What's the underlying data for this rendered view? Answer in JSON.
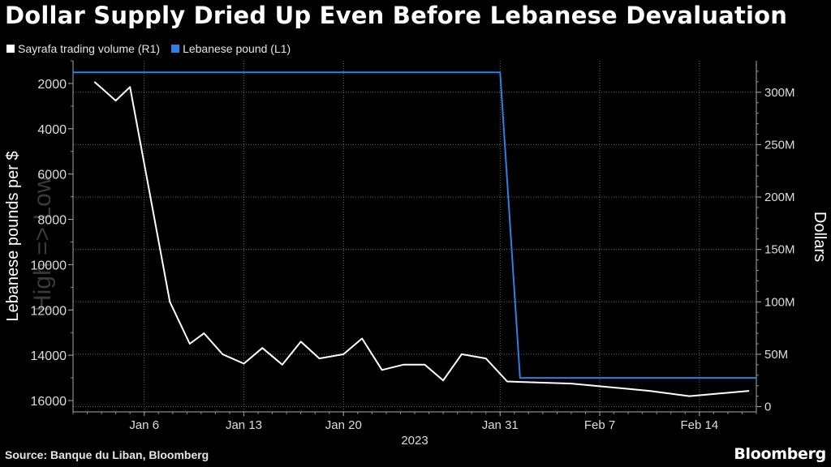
{
  "title": "Dollar Supply Dried Up Even Before Lebanese Devaluation",
  "source": "Source: Banque du Liban, Bloomberg",
  "brand": "Bloomberg",
  "colors": {
    "volume": "#ffffff",
    "pound": "#2f7fe6",
    "grid": "#6a6a6a",
    "background": "#000000"
  },
  "chart_data": {
    "type": "line",
    "title": "Dollar Supply Dried Up Even Before Lebanese Devaluation",
    "xlabel": "2023",
    "x_tick_labels": [
      "Jan 6",
      "Jan 13",
      "Jan 20",
      "Jan 31",
      "Feb 7",
      "Feb 14"
    ],
    "x_tick_days": [
      6,
      13,
      20,
      31,
      38,
      45
    ],
    "xlim_days": [
      1,
      49
    ],
    "y_left": {
      "label": "Lebanese pounds per $",
      "watermark": "High => Low",
      "inverted": true,
      "range": [
        1000,
        16500
      ],
      "ticks": [
        2000,
        4000,
        6000,
        8000,
        10000,
        12000,
        14000,
        16000
      ],
      "tick_labels": [
        "2000",
        "4000",
        "6000",
        "8000",
        "10000",
        "12000",
        "14000",
        "16000"
      ]
    },
    "y_right": {
      "label": "Dollars",
      "range": [
        -5000000,
        330000000
      ],
      "ticks": [
        0,
        50000000,
        100000000,
        150000000,
        200000000,
        250000000,
        300000000
      ],
      "tick_labels": [
        "0",
        "50M",
        "100M",
        "150M",
        "200M",
        "250M",
        "300M"
      ]
    },
    "series": [
      {
        "name": "Sayrafa trading volume (R1)",
        "axis": "right",
        "color": "#ffffff",
        "x": [
          2.5,
          4,
          5,
          7.8,
          9.2,
          10.2,
          11.5,
          13,
          14.3,
          15.7,
          17,
          18.3,
          20,
          21.3,
          22.7,
          24.2,
          25.7,
          27,
          28.3,
          30,
          31.5,
          36,
          41.5,
          44.3,
          48.5
        ],
        "values": [
          310000000,
          292000000,
          305000000,
          100000000,
          60000000,
          70000000,
          50000000,
          41000000,
          56000000,
          40000000,
          62000000,
          46000000,
          50000000,
          65000000,
          35000000,
          40000000,
          40000000,
          25000000,
          50000000,
          46000000,
          24000000,
          22000000,
          15000000,
          10000000,
          15000000
        ]
      },
      {
        "name": "Lebanese pound (L1)",
        "axis": "left",
        "color": "#2f7fe6",
        "x": [
          1,
          31,
          32.4,
          35,
          37.2,
          49
        ],
        "values": [
          1507,
          1507,
          15000,
          15000,
          15000,
          15000
        ]
      }
    ]
  }
}
